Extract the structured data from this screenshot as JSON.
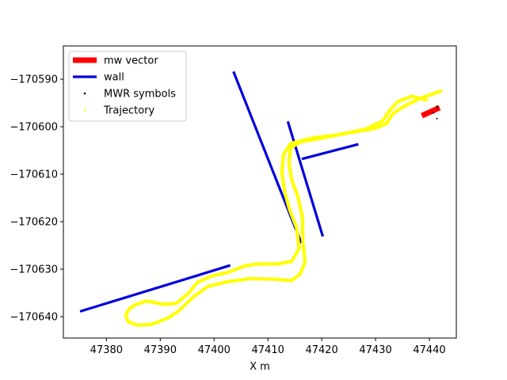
{
  "chart_data": {
    "type": "line",
    "title": "",
    "xlabel": "X  m",
    "ylabel": "",
    "xlim": [
      47372.0,
      47445.0
    ],
    "ylim": [
      -170644.5,
      -170583.0
    ],
    "xticks": [
      47380,
      47390,
      47400,
      47410,
      47420,
      47430,
      47440
    ],
    "xtick_labels": [
      "47380",
      "47390",
      "47400",
      "47410",
      "47420",
      "47430",
      "47440"
    ],
    "yticks": [
      -170590,
      -170600,
      -170610,
      -170620,
      -170630,
      -170640
    ],
    "ytick_labels": [
      "−170590",
      "−170600",
      "−170610",
      "−170620",
      "−170630",
      "−170640"
    ],
    "grid": false,
    "legend_position": "upper-left",
    "legend": [
      {
        "label": "mw vector",
        "style": "thick-line",
        "color": "#ff0000"
      },
      {
        "label": "wall",
        "style": "line",
        "color": "#0000dd"
      },
      {
        "label": "MWR symbols",
        "style": "dot",
        "color": "#000000"
      },
      {
        "label": "Trajectory",
        "style": "dot",
        "color": "#ffff00"
      }
    ],
    "series": [
      {
        "name": "wall",
        "color": "#0000dd",
        "segments": [
          [
            [
              47375.1,
              -170638.9
            ],
            [
              47403.0,
              -170629.2
            ]
          ],
          [
            [
              47403.6,
              -170588.4
            ],
            [
              47416.2,
              -170624.5
            ]
          ],
          [
            [
              47413.7,
              -170598.9
            ],
            [
              47420.2,
              -170623.1
            ]
          ],
          [
            [
              47416.3,
              -170606.8
            ],
            [
              47426.8,
              -170603.7
            ]
          ]
        ]
      },
      {
        "name": "mw vector",
        "color": "#ff0000",
        "segments": [
          [
            [
              47438.6,
              -170597.7
            ],
            [
              47441.9,
              -170596.0
            ]
          ]
        ]
      },
      {
        "name": "MWR symbols",
        "color": "#000000",
        "points": [
          [
            47441.4,
            -170595.7
          ],
          [
            47441.5,
            -170596.1
          ],
          [
            47441.4,
            -170598.3
          ],
          [
            47440.8,
            -170597.1
          ]
        ]
      },
      {
        "name": "Trajectory",
        "color": "#ffff00",
        "paths": [
          [
            [
              47442.1,
              -170592.5
            ],
            [
              47438.0,
              -170594.2
            ],
            [
              47435.3,
              -170595.7
            ],
            [
              47433.2,
              -170597.3
            ],
            [
              47432.0,
              -170599.4
            ],
            [
              47429.8,
              -170600.4
            ],
            [
              47425.0,
              -170601.3
            ],
            [
              47420.0,
              -170602.4
            ],
            [
              47416.0,
              -170603.2
            ],
            [
              47414.2,
              -170604.5
            ],
            [
              47413.9,
              -170607.5
            ],
            [
              47414.4,
              -170611.1
            ],
            [
              47415.6,
              -170614.8
            ],
            [
              47416.4,
              -170619.0
            ],
            [
              47416.5,
              -170624.5
            ],
            [
              47416.9,
              -170628.5
            ],
            [
              47416.0,
              -170631.0
            ],
            [
              47414.4,
              -170632.4
            ],
            [
              47411.2,
              -170632.1
            ],
            [
              47406.6,
              -170632.0
            ],
            [
              47402.2,
              -170632.7
            ],
            [
              47398.9,
              -170633.6
            ],
            [
              47396.3,
              -170635.7
            ],
            [
              47394.6,
              -170637.5
            ],
            [
              47393.2,
              -170639.0
            ],
            [
              47391.4,
              -170640.3
            ],
            [
              47388.5,
              -170641.6
            ],
            [
              47385.7,
              -170641.8
            ],
            [
              47384.0,
              -170641.0
            ],
            [
              47383.6,
              -170639.6
            ],
            [
              47384.2,
              -170638.4
            ],
            [
              47385.3,
              -170637.5
            ],
            [
              47387.4,
              -170636.7
            ],
            [
              47390.6,
              -170637.4
            ],
            [
              47393.0,
              -170637.2
            ],
            [
              47395.2,
              -170635.1
            ],
            [
              47396.9,
              -170632.8
            ],
            [
              47399.4,
              -170631.5
            ],
            [
              47402.8,
              -170630.6
            ],
            [
              47405.7,
              -170629.3
            ],
            [
              47408.1,
              -170628.9
            ],
            [
              47411.6,
              -170628.9
            ],
            [
              47414.4,
              -170628.4
            ],
            [
              47415.8,
              -170625.6
            ],
            [
              47415.3,
              -170621.2
            ],
            [
              47414.0,
              -170617.4
            ],
            [
              47413.1,
              -170613.7
            ],
            [
              47412.6,
              -170609.6
            ],
            [
              47412.9,
              -170605.8
            ],
            [
              47414.3,
              -170603.5
            ],
            [
              47418.2,
              -170602.4
            ],
            [
              47423.0,
              -170601.7
            ],
            [
              47428.0,
              -170600.6
            ],
            [
              47431.3,
              -170598.8
            ],
            [
              47432.6,
              -170596.6
            ],
            [
              47434.2,
              -170594.7
            ],
            [
              47436.7,
              -170593.6
            ],
            [
              47439.4,
              -170594.4
            ]
          ]
        ]
      }
    ]
  }
}
